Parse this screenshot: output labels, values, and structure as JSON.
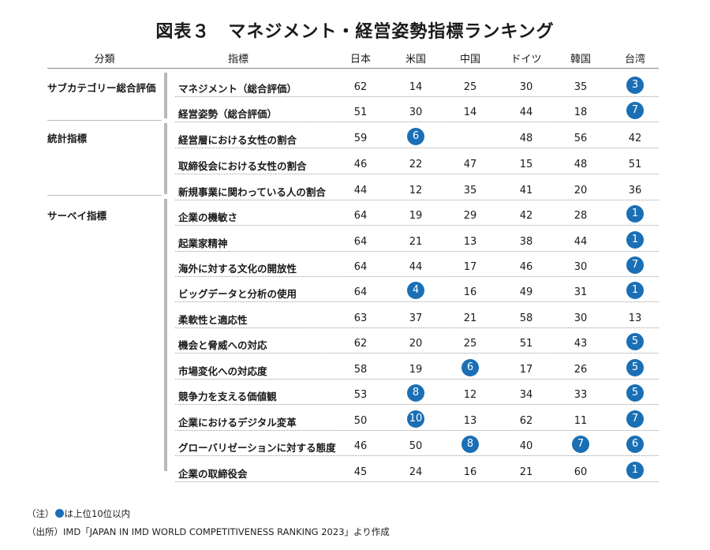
{
  "title": "図表３　マネジメント・経営姿勢指標ランキング",
  "columns": {
    "category": "分類",
    "indicator": "指標",
    "countries": [
      "日本",
      "米国",
      "中国",
      "ドイツ",
      "韓国",
      "台湾"
    ]
  },
  "groups": [
    {
      "label": "サブカテゴリー総合評価"
    },
    {
      "label": "統計指標"
    },
    {
      "label": "サーベイ指標"
    }
  ],
  "rows": [
    {
      "indicator": "マネジメント（総合評価）",
      "values": [
        "62",
        "14",
        "25",
        "30",
        "35",
        "3"
      ],
      "highlight": [
        false,
        false,
        false,
        false,
        false,
        true
      ]
    },
    {
      "indicator": "経営姿勢（総合評価）",
      "values": [
        "51",
        "30",
        "14",
        "44",
        "18",
        "7"
      ],
      "highlight": [
        false,
        false,
        false,
        false,
        false,
        true
      ]
    },
    {
      "indicator": "経営層における女性の割合",
      "values": [
        "59",
        "6",
        "",
        "48",
        "56",
        "42"
      ],
      "highlight": [
        false,
        true,
        false,
        false,
        false,
        false
      ]
    },
    {
      "indicator": "取締役会における女性の割合",
      "values": [
        "46",
        "22",
        "47",
        "15",
        "48",
        "51"
      ],
      "highlight": [
        false,
        false,
        false,
        false,
        false,
        false
      ]
    },
    {
      "indicator": "新規事業に関わっている人の割合",
      "values": [
        "44",
        "12",
        "35",
        "41",
        "20",
        "36"
      ],
      "highlight": [
        false,
        false,
        false,
        false,
        false,
        false
      ]
    },
    {
      "indicator": "企業の機敏さ",
      "values": [
        "64",
        "19",
        "29",
        "42",
        "28",
        "1"
      ],
      "highlight": [
        false,
        false,
        false,
        false,
        false,
        true
      ]
    },
    {
      "indicator": "起業家精神",
      "values": [
        "64",
        "21",
        "13",
        "38",
        "44",
        "1"
      ],
      "highlight": [
        false,
        false,
        false,
        false,
        false,
        true
      ]
    },
    {
      "indicator": "海外に対する文化の開放性",
      "values": [
        "64",
        "44",
        "17",
        "46",
        "30",
        "7"
      ],
      "highlight": [
        false,
        false,
        false,
        false,
        false,
        true
      ]
    },
    {
      "indicator": "ビッグデータと分析の使用",
      "values": [
        "64",
        "4",
        "16",
        "49",
        "31",
        "1"
      ],
      "highlight": [
        false,
        true,
        false,
        false,
        false,
        true
      ]
    },
    {
      "indicator": "柔軟性と適応性",
      "values": [
        "63",
        "37",
        "21",
        "58",
        "30",
        "13"
      ],
      "highlight": [
        false,
        false,
        false,
        false,
        false,
        false
      ]
    },
    {
      "indicator": "機会と脅威への対応",
      "values": [
        "62",
        "20",
        "25",
        "51",
        "43",
        "5"
      ],
      "highlight": [
        false,
        false,
        false,
        false,
        false,
        true
      ]
    },
    {
      "indicator": "市場変化への対応度",
      "values": [
        "58",
        "19",
        "6",
        "17",
        "26",
        "5"
      ],
      "highlight": [
        false,
        false,
        true,
        false,
        false,
        true
      ]
    },
    {
      "indicator": "競争力を支える価値観",
      "values": [
        "53",
        "8",
        "12",
        "34",
        "33",
        "5"
      ],
      "highlight": [
        false,
        true,
        false,
        false,
        false,
        true
      ]
    },
    {
      "indicator": "企業におけるデジタル変革",
      "values": [
        "50",
        "10",
        "13",
        "62",
        "11",
        "7"
      ],
      "highlight": [
        false,
        true,
        false,
        false,
        false,
        true
      ]
    },
    {
      "indicator": "グローバリゼーションに対する態度",
      "values": [
        "46",
        "50",
        "8",
        "40",
        "7",
        "6"
      ],
      "highlight": [
        false,
        false,
        true,
        false,
        true,
        true
      ]
    },
    {
      "indicator": "企業の取締役会",
      "values": [
        "45",
        "24",
        "16",
        "21",
        "60",
        "1"
      ],
      "highlight": [
        false,
        false,
        false,
        false,
        false,
        true
      ]
    }
  ],
  "notes": {
    "note_prefix": "（注）",
    "note_text": "は上位10位以内",
    "source": "（出所）IMD「JAPAN IN IMD WORLD COMPETITIVENESS RANKING 2023」より作成"
  },
  "colors": {
    "highlight": "#1a6fb5"
  }
}
